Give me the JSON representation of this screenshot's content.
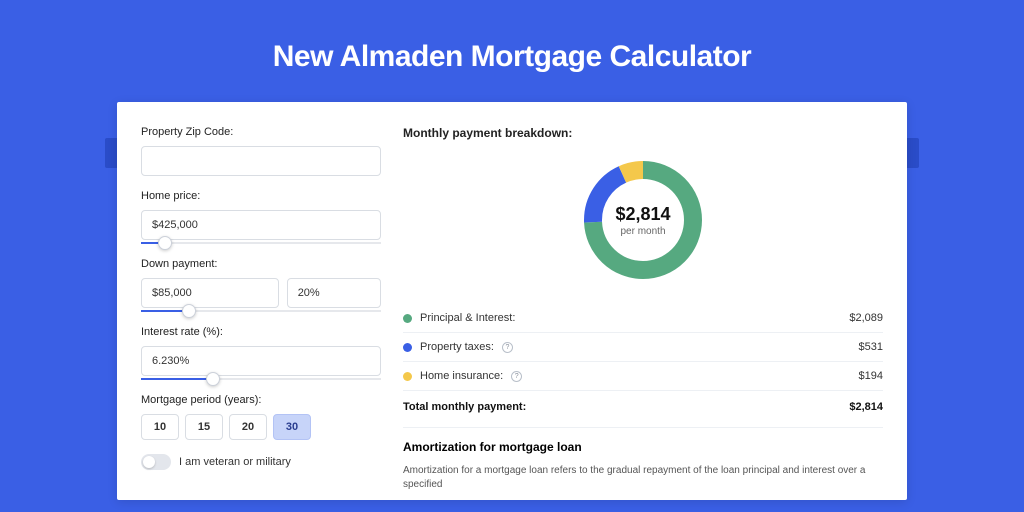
{
  "title": "New Almaden Mortgage Calculator",
  "colors": {
    "page_bg": "#3a5fe5",
    "band_bg": "#2a4cc8",
    "card_bg": "#ffffff",
    "border": "#d9dde3",
    "slider_fill": "#3a5fe5"
  },
  "form": {
    "zip_label": "Property Zip Code:",
    "zip_value": "",
    "home_price_label": "Home price:",
    "home_price_value": "$425,000",
    "home_price_slider_pct": 10,
    "down_label": "Down payment:",
    "down_value": "$85,000",
    "down_pct_value": "20%",
    "down_slider_pct": 20,
    "rate_label": "Interest rate (%):",
    "rate_value": "6.230%",
    "rate_slider_pct": 30,
    "period_label": "Mortgage period (years):",
    "period_options": [
      "10",
      "15",
      "20",
      "30"
    ],
    "period_selected": "30",
    "veteran_label": "I am veteran or military",
    "veteran_on": false
  },
  "breakdown": {
    "title": "Monthly payment breakdown:",
    "center_amount": "$2,814",
    "center_sub": "per month",
    "donut": {
      "radius": 50,
      "stroke_width": 18,
      "segments": [
        {
          "key": "principal",
          "label": "Principal & Interest:",
          "value": "$2,089",
          "pct": 74.2,
          "color": "#56a980"
        },
        {
          "key": "taxes",
          "label": "Property taxes:",
          "value": "$531",
          "pct": 18.9,
          "color": "#3a5fe5",
          "info": true
        },
        {
          "key": "insurance",
          "label": "Home insurance:",
          "value": "$194",
          "pct": 6.9,
          "color": "#f4c84b",
          "info": true
        }
      ]
    },
    "total_label": "Total monthly payment:",
    "total_value": "$2,814"
  },
  "amortization": {
    "title": "Amortization for mortgage loan",
    "text": "Amortization for a mortgage loan refers to the gradual repayment of the loan principal and interest over a specified"
  }
}
